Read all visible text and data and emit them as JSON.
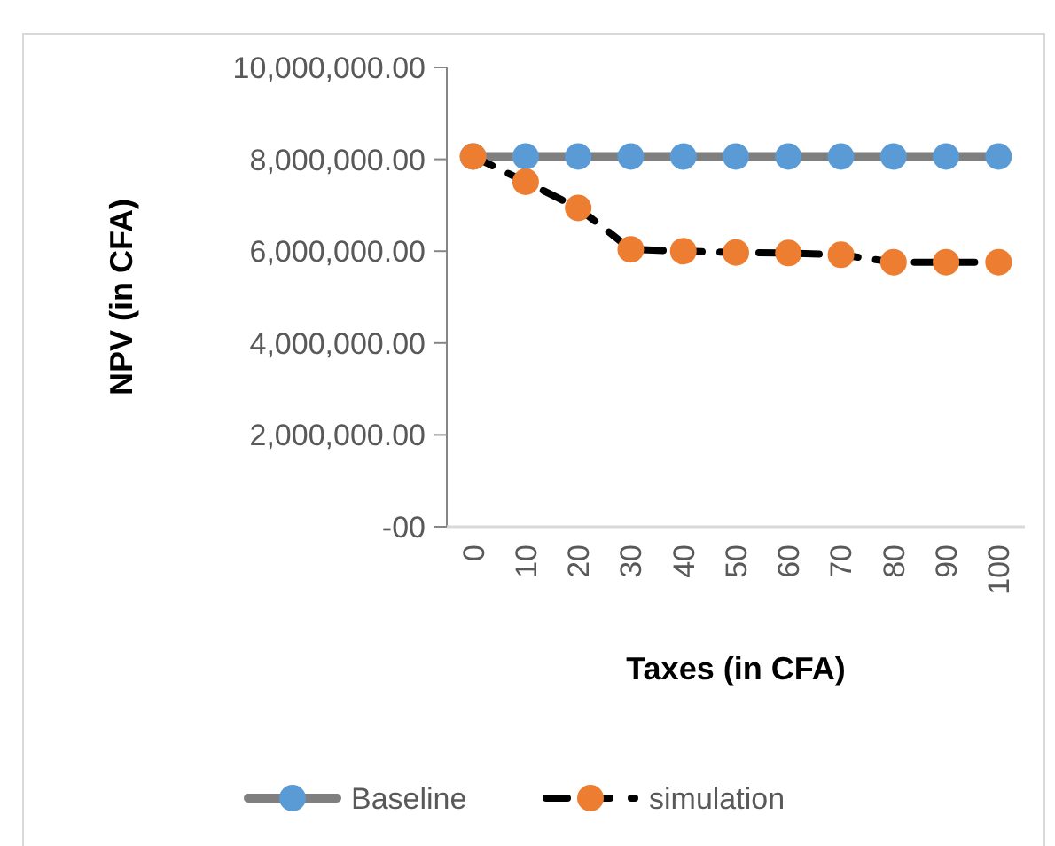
{
  "chart_data": {
    "type": "line",
    "xlabel": "Taxes (in CFA)",
    "ylabel": "NPV (in CFA)",
    "categories": [
      "0",
      "10",
      "20",
      "30",
      "40",
      "50",
      "60",
      "70",
      "80",
      "90",
      "100"
    ],
    "ylim": [
      0,
      10000000
    ],
    "yticks": [
      {
        "value": 0,
        "label": "-00"
      },
      {
        "value": 2000000,
        "label": "2,000,000.00"
      },
      {
        "value": 4000000,
        "label": "4,000,000.00"
      },
      {
        "value": 6000000,
        "label": "6,000,000.00"
      },
      {
        "value": 8000000,
        "label": "8,000,000.00"
      },
      {
        "value": 10000000,
        "label": "10,000,000.00"
      }
    ],
    "marker": "circle",
    "legend": "bottom",
    "grid": false,
    "series": [
      {
        "name": "Baseline",
        "color": "#5b9bd5",
        "line_style": "solid",
        "values": [
          8060000,
          8060000,
          8060000,
          8060000,
          8060000,
          8060000,
          8060000,
          8060000,
          8060000,
          8060000,
          8060000
        ]
      },
      {
        "name": "simulation",
        "color": "#ed7d31",
        "line_style": "dashed",
        "values": [
          8060000,
          7510000,
          6940000,
          6040000,
          6000000,
          5970000,
          5960000,
          5920000,
          5760000,
          5760000,
          5760000
        ]
      }
    ]
  }
}
